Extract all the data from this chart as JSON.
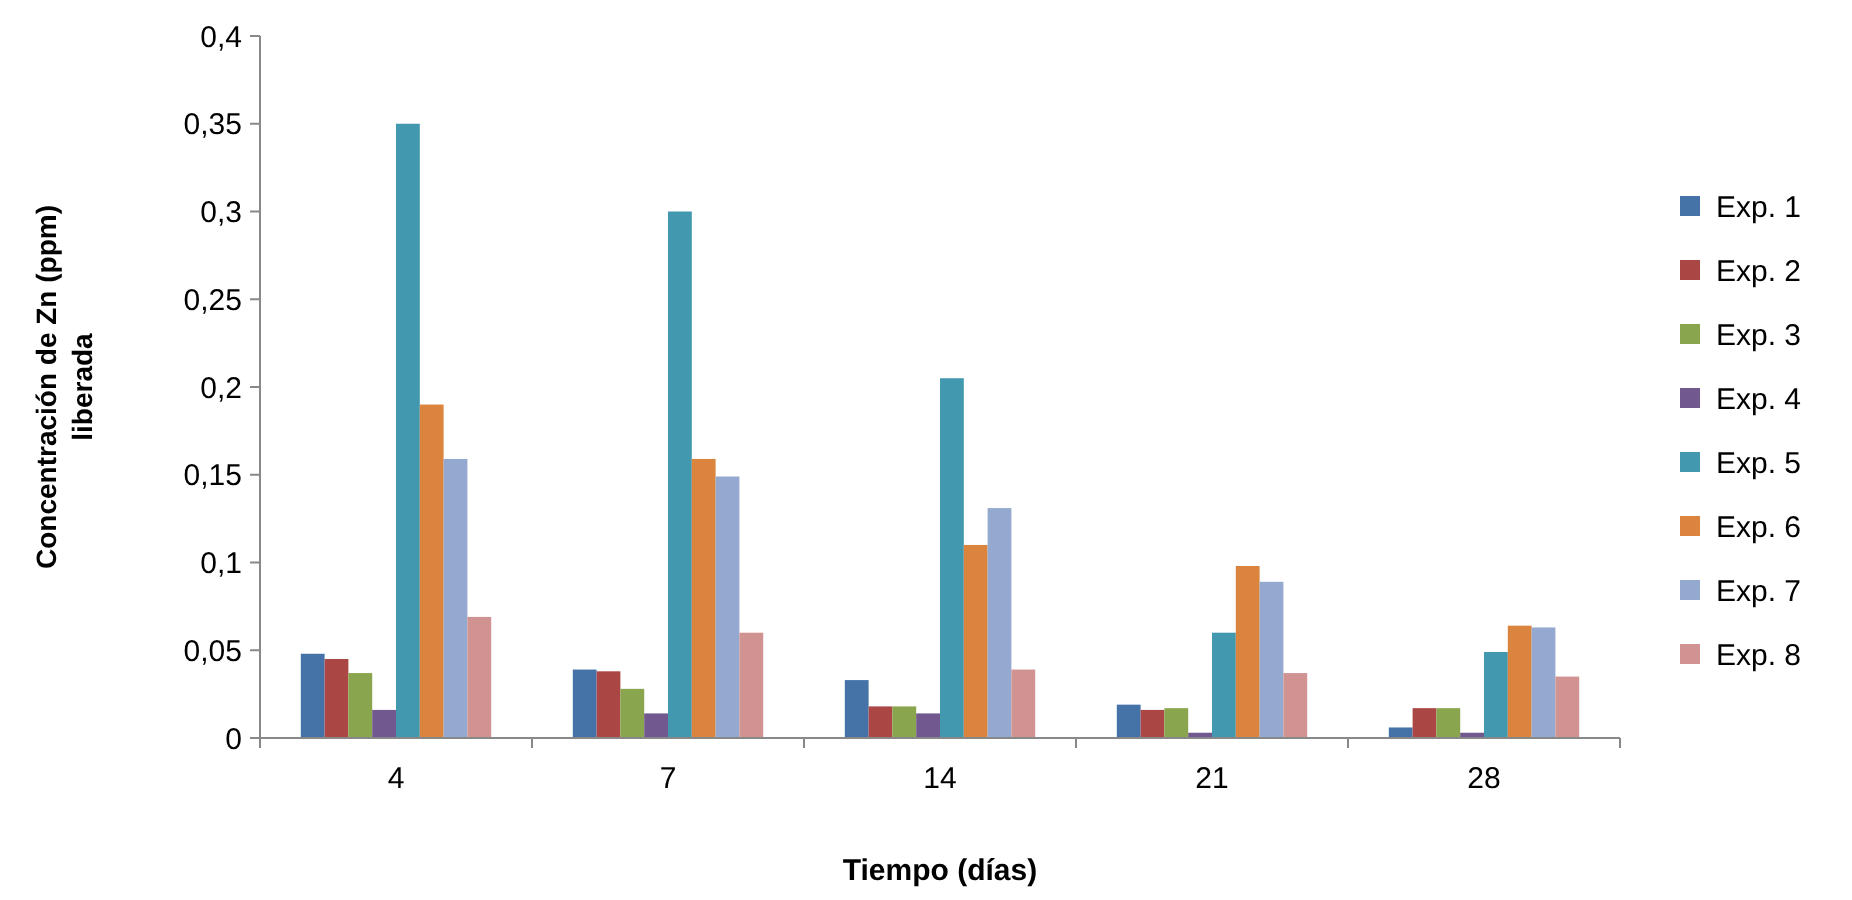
{
  "chart_data": {
    "type": "bar",
    "xlabel": "Tiempo (días)",
    "ylabel": "Concentración de  Zn  (ppm)\nliberada",
    "categories": [
      "4",
      "7",
      "14",
      "21",
      "28"
    ],
    "series": [
      {
        "name": "Exp. 1",
        "color": "#4572a7",
        "values": [
          0.048,
          0.039,
          0.033,
          0.019,
          0.006
        ]
      },
      {
        "name": "Exp. 2",
        "color": "#aa4643",
        "values": [
          0.045,
          0.038,
          0.018,
          0.016,
          0.017
        ]
      },
      {
        "name": "Exp. 3",
        "color": "#89a54e",
        "values": [
          0.037,
          0.028,
          0.018,
          0.017,
          0.017
        ]
      },
      {
        "name": "Exp. 4",
        "color": "#71588f",
        "values": [
          0.016,
          0.014,
          0.014,
          0.003,
          0.003
        ]
      },
      {
        "name": "Exp. 5",
        "color": "#4198af",
        "values": [
          0.35,
          0.3,
          0.205,
          0.06,
          0.049
        ]
      },
      {
        "name": "Exp. 6",
        "color": "#db843d",
        "values": [
          0.19,
          0.159,
          0.11,
          0.098,
          0.064
        ]
      },
      {
        "name": "Exp. 7",
        "color": "#93a9cf",
        "values": [
          0.159,
          0.149,
          0.131,
          0.089,
          0.063
        ]
      },
      {
        "name": "Exp. 8",
        "color": "#d19392",
        "values": [
          0.069,
          0.06,
          0.039,
          0.037,
          0.035
        ]
      }
    ],
    "ylim": [
      0,
      0.4
    ],
    "yticks": [
      0,
      {
        "value": 0.05,
        "label": "0,05"
      },
      {
        "value": 0.1,
        "label": "0,1"
      },
      {
        "value": 0.15,
        "label": "0,15"
      },
      {
        "value": 0.2,
        "label": "0,2"
      },
      {
        "value": 0.25,
        "label": "0,25"
      },
      {
        "value": 0.3,
        "label": "0,3"
      },
      {
        "value": 0.35,
        "label": "0,35"
      },
      {
        "value": 0.4,
        "label": "0,4"
      }
    ],
    "grid": false,
    "legend": "right"
  }
}
